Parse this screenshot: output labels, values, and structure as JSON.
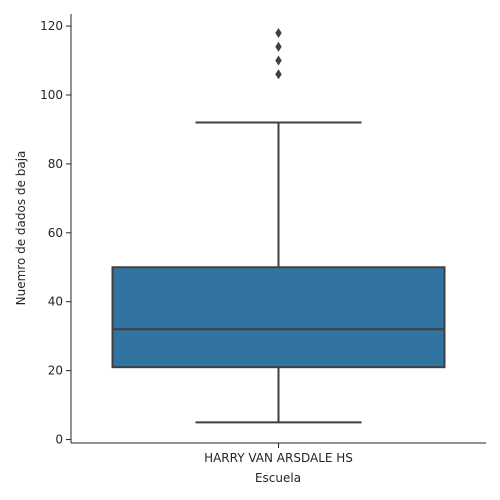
{
  "chart_data": {
    "type": "box",
    "xlabel": "Escuela",
    "ylabel": "Nuemro de dados de baja",
    "categories": [
      "HARRY VAN ARSDALE HS"
    ],
    "ylim": [
      -1,
      123.5
    ],
    "yticks": [
      0,
      20,
      40,
      60,
      80,
      100,
      120
    ],
    "boxes": [
      {
        "category": "HARRY VAN ARSDALE HS",
        "whisker_low": 5,
        "q1": 21,
        "median": 32,
        "q3": 50,
        "whisker_high": 92,
        "outliers": [
          106,
          110,
          114,
          118
        ]
      }
    ],
    "box_color": "#3274a1",
    "line_color": "#3f3f3f",
    "grid": false,
    "legend": null
  }
}
